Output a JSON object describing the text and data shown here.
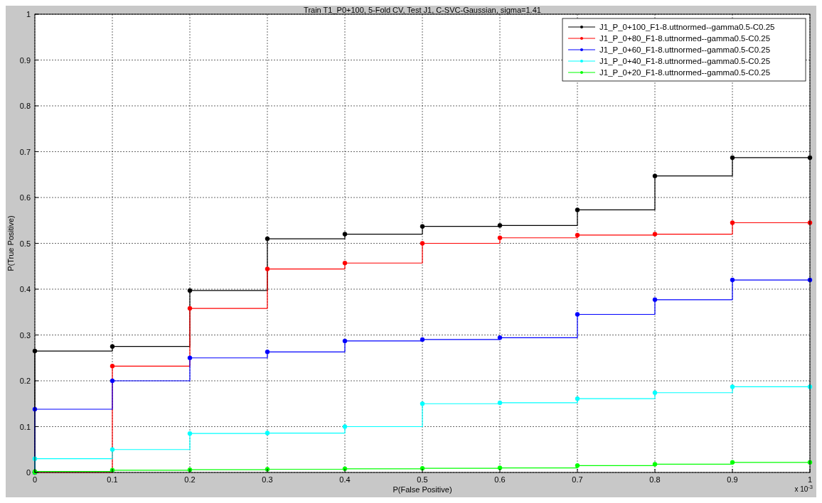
{
  "chart_data": {
    "type": "step",
    "title": "Train T1_P0+100, 5-Fold CV, Test J1, C-SVC-Gaussian, sigma=1.41",
    "xlabel": "P(False Positive)",
    "ylabel": "P(True Positive)",
    "x": [
      0,
      0,
      0.1,
      0.2,
      0.3,
      0.4,
      0.5,
      0.6,
      0.7,
      0.8,
      0.9,
      1
    ],
    "series": [
      {
        "name": "J1_P_0+100_F1-8.uttnormed--gamma0.5-C0.25",
        "color": "#000000",
        "values": [
          0,
          0.265,
          0.275,
          0.397,
          0.51,
          0.52,
          0.537,
          0.539,
          0.573,
          0.647,
          0.687,
          0.687
        ]
      },
      {
        "name": "J1_P_0+80_F1-8.uttnormed--gamma0.5-C0.25",
        "color": "#ff0000",
        "values": [
          0,
          null,
          0.232,
          0.358,
          0.444,
          0.457,
          0.5,
          0.512,
          0.518,
          0.52,
          0.545,
          0.545
        ]
      },
      {
        "name": "J1_P_0+60_F1-8.uttnormed--gamma0.5-C0.25",
        "color": "#0000ff",
        "values": [
          0,
          0.138,
          0.2,
          0.25,
          0.263,
          0.287,
          0.29,
          0.294,
          0.345,
          0.377,
          0.42,
          0.42
        ]
      },
      {
        "name": "J1_P_0+40_F1-8.uttnormed--gamma0.5-C0.25",
        "color": "#00ffff",
        "values": [
          0,
          0.03,
          0.05,
          0.085,
          0.086,
          0.1,
          0.15,
          0.152,
          0.161,
          0.174,
          0.187,
          0.187
        ]
      },
      {
        "name": "J1_P_0+20_F1-8.uttnormed--gamma0.5-C0.25",
        "color": "#00ff00",
        "values": [
          0,
          0.002,
          0.005,
          0.006,
          0.007,
          0.008,
          0.009,
          0.01,
          0.015,
          0.018,
          0.022,
          0.022
        ]
      }
    ],
    "xlim": [
      0,
      1
    ],
    "xticks": [
      0,
      0.1,
      0.2,
      0.3,
      0.4,
      0.5,
      0.6,
      0.7,
      0.8,
      0.9,
      1
    ],
    "ylim": [
      0,
      1
    ],
    "yticks": [
      0,
      0.1,
      0.2,
      0.3,
      0.4,
      0.5,
      0.6,
      0.7,
      0.8,
      0.9,
      1
    ],
    "annotations": [
      "x 10$^{-3}$"
    ],
    "grid": true,
    "legend": "top right",
    "marker": "circle",
    "line_style": "solid"
  }
}
